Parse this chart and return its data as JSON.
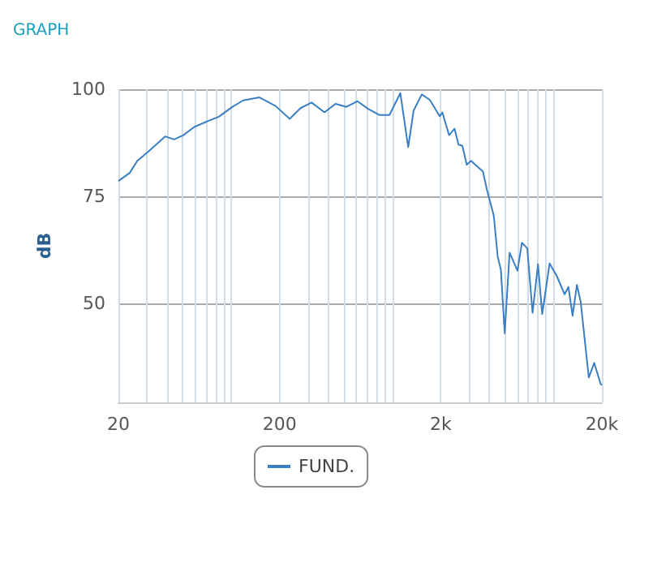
{
  "chart_data": {
    "type": "line",
    "title": "GRAPH",
    "ylabel": "dB",
    "xlim": [
      20,
      20000
    ],
    "ylim": [
      27,
      100
    ],
    "xticks": [
      20,
      {
        "value": 30,
        "label": null
      },
      {
        "value": 40,
        "label": null
      },
      {
        "value": 50,
        "label": null
      },
      {
        "value": 60,
        "label": null
      },
      {
        "value": 70,
        "label": null
      },
      {
        "value": 80,
        "label": null
      },
      {
        "value": 90,
        "label": null
      },
      {
        "value": 100,
        "label": null
      },
      200,
      {
        "value": 300,
        "label": null
      },
      {
        "value": 400,
        "label": null
      },
      {
        "value": 500,
        "label": null
      },
      {
        "value": 600,
        "label": null
      },
      {
        "value": 700,
        "label": null
      },
      {
        "value": 800,
        "label": null
      },
      {
        "value": 900,
        "label": null
      },
      {
        "value": 1000,
        "label": null
      },
      {
        "value": 2000,
        "label": "2k"
      },
      {
        "value": 3000,
        "label": null
      },
      {
        "value": 4000,
        "label": null
      },
      {
        "value": 5000,
        "label": null
      },
      {
        "value": 6000,
        "label": null
      },
      {
        "value": 7000,
        "label": null
      },
      {
        "value": 8000,
        "label": null
      },
      {
        "value": 9000,
        "label": null
      },
      {
        "value": 10000,
        "label": null
      },
      {
        "value": 20000,
        "label": "20k"
      }
    ],
    "yticks": [
      50,
      75,
      100
    ],
    "log": "x",
    "grid": true,
    "legend": "bottom",
    "marker": "none",
    "line_style": "solid",
    "series": [
      {
        "name": "FUND.",
        "color": "#3a7fc4",
        "x": [
          20,
          23.5,
          26.2,
          30.9,
          39,
          44.3,
          50.6,
          59.1,
          72,
          84,
          102,
          119,
          150,
          189,
          231,
          270,
          316,
          380,
          445,
          520,
          608,
          711,
          830,
          961,
          1123,
          1257,
          1357,
          1526,
          1714,
          1970,
          2048,
          2253,
          2437,
          2580,
          2725,
          2900,
          3083,
          3658,
          3863,
          4270,
          4510,
          4725,
          4990,
          5350,
          5990,
          6380,
          6890,
          7430,
          8030,
          8530,
          9480,
          10460,
          11740,
          12400,
          13160,
          14000,
          14780,
          16590,
          17930,
          19650,
          20000
        ],
        "values": [
          78.6,
          80.5,
          83.3,
          85.6,
          89,
          88.3,
          89.3,
          91.2,
          92.6,
          93.6,
          95.9,
          97.4,
          98.1,
          96.1,
          93.1,
          95.6,
          96.9,
          94.6,
          96.6,
          95.9,
          97.2,
          95.4,
          94,
          94,
          99.1,
          86.5,
          95,
          98.8,
          97.5,
          93.7,
          94.6,
          89.3,
          90.8,
          87.1,
          86.8,
          82.4,
          83.3,
          80.8,
          76.7,
          70.5,
          61.1,
          57.9,
          43.1,
          61.9,
          57.7,
          64.2,
          62.9,
          47.9,
          59.2,
          47.6,
          59.4,
          56.6,
          52.2,
          53.9,
          47.2,
          54.4,
          50.4,
          32.8,
          36.2,
          31.3,
          31
        ]
      }
    ]
  }
}
